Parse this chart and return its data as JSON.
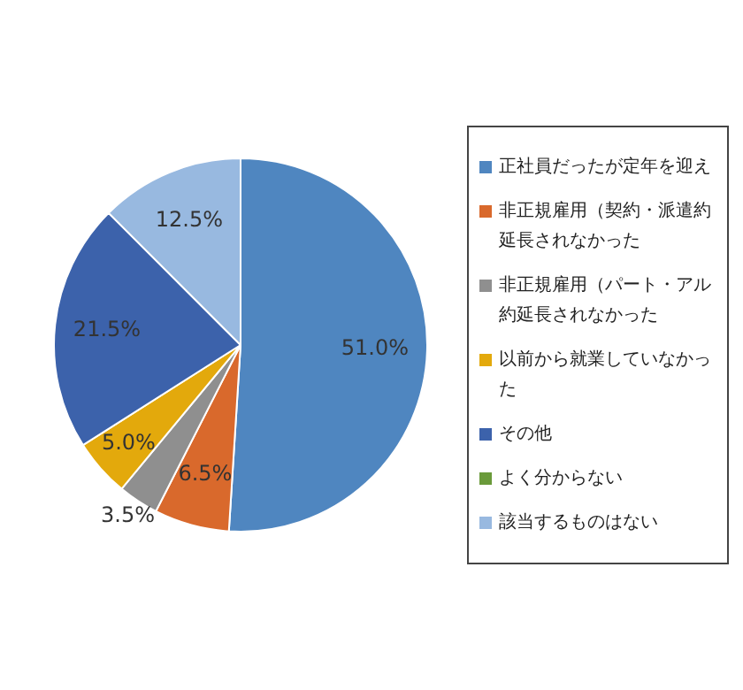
{
  "chart_data": {
    "type": "pie",
    "categories": [
      "正社員だったが定年を迎え",
      "非正規雇用（契約・派遣約延長されなかった",
      "非正規雇用（パート・アル約延長されなかった",
      "以前から就業していなかった",
      "その他",
      "よく分からない",
      "該当するものはない"
    ],
    "values": [
      51.0,
      6.5,
      3.5,
      5.0,
      21.5,
      0,
      12.5
    ],
    "colors": [
      "#4f86c0",
      "#d9692c",
      "#8f8f8f",
      "#e3a90c",
      "#3c62ab",
      "#6a9a3a",
      "#98b9e0"
    ],
    "value_labels": [
      "51.0%",
      "6.5%",
      "3.5%",
      "5.0%",
      "21.5%",
      null,
      "12.5%"
    ],
    "legend": "right"
  }
}
